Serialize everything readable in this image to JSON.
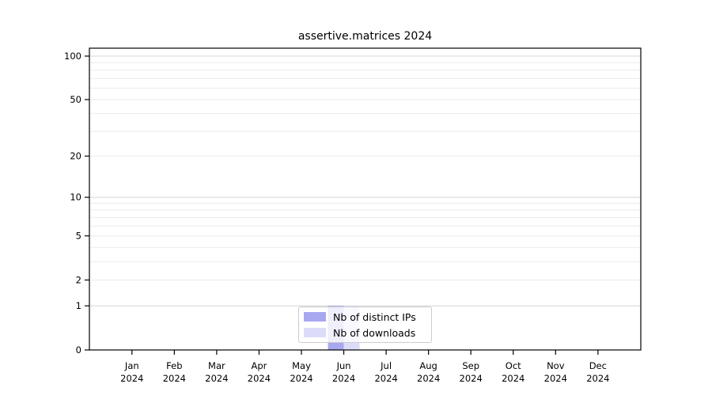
{
  "chart_data": {
    "type": "bar",
    "title": "assertive.matrices 2024",
    "categories": [
      "Jan",
      "Feb",
      "Mar",
      "Apr",
      "May",
      "Jun",
      "Jul",
      "Aug",
      "Sep",
      "Oct",
      "Nov",
      "Dec"
    ],
    "x_year_label": "2024",
    "series": [
      {
        "name": "Nb of distinct IPs",
        "color": "#a8a8f0",
        "values": [
          0,
          0,
          0,
          0,
          0,
          1,
          0,
          0,
          0,
          0,
          0,
          0
        ]
      },
      {
        "name": "Nb of downloads",
        "color": "#dcdcfa",
        "values": [
          0,
          0,
          0,
          0,
          0,
          1,
          0,
          0,
          0,
          0,
          0,
          0
        ]
      }
    ],
    "y_ticks": [
      0,
      1,
      2,
      5,
      10,
      20,
      50,
      100
    ],
    "y_scale": "log10(value+1)",
    "ylim": [
      0,
      113
    ],
    "xlabel": "",
    "ylabel": "",
    "grid": "horizontal",
    "legend_position": "inside-bottom-center",
    "colors": {
      "axis": "#000000",
      "tick_label": "#000000",
      "grid_minor": "#ebebeb",
      "grid_major": "#d4d4d4",
      "legend_border": "#cccccc",
      "background": "#ffffff"
    }
  }
}
